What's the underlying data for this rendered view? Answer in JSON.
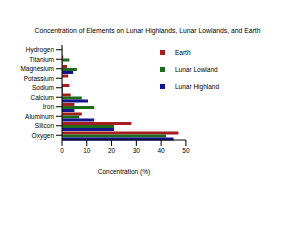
{
  "chart_data": {
    "type": "bar",
    "title": "Concentration of Elements on Lunar Highlands, Lunar Lowlands, and Earth",
    "xlabel": "Concentration (%)",
    "orientation": "horizontal",
    "legend": "upper right",
    "categories": [
      "Hydrogen",
      "Titanium",
      "Magnesium",
      "Potassium",
      "Sodium",
      "Calcium",
      "Iron",
      "Aluminum",
      "Silicon",
      "Oxygen"
    ],
    "series": [
      {
        "name": "Earth",
        "color": "#a31f1f",
        "values": [
          0.1,
          0.5,
          2,
          2.5,
          3,
          3.5,
          5,
          8,
          28,
          47
        ]
      },
      {
        "name": "Lunar Lowland",
        "color": "#1e6b1e",
        "values": [
          0.1,
          3,
          6,
          0.1,
          0.3,
          8,
          13,
          7,
          21,
          42
        ]
      },
      {
        "name": "Lunar Highland",
        "color": "#14148c",
        "values": [
          0.1,
          0.3,
          4.5,
          0.1,
          0.3,
          10.5,
          5,
          13,
          21,
          45
        ]
      }
    ],
    "xlim": [
      0,
      50
    ],
    "xticks": [
      0,
      10,
      20,
      30,
      40,
      50
    ]
  }
}
